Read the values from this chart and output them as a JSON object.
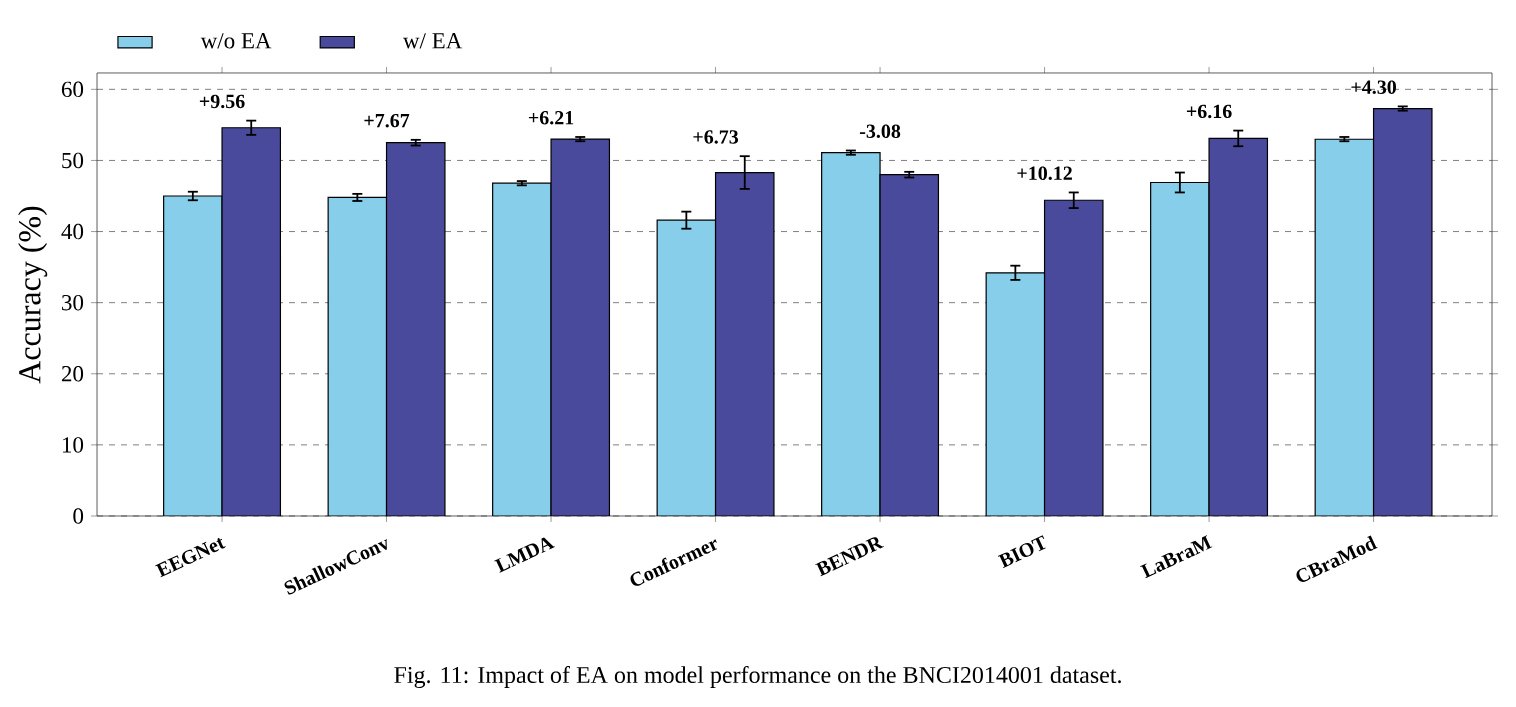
{
  "chart_data": {
    "type": "bar",
    "ylabel": "Accuracy (%)",
    "categories": [
      "EEGNet",
      "ShallowConv",
      "LMDA",
      "Conformer",
      "BENDR",
      "BIOT",
      "LaBraM",
      "CBraMod"
    ],
    "series": [
      {
        "name": "w/o EA",
        "color": "#87ceeb",
        "values": [
          45.0,
          44.8,
          46.8,
          41.6,
          51.1,
          34.2,
          46.9,
          53.0
        ],
        "errors": [
          0.6,
          0.5,
          0.3,
          1.2,
          0.3,
          1.0,
          1.4,
          0.3
        ]
      },
      {
        "name": "w/ EA",
        "color": "#4a4a9c",
        "values": [
          54.6,
          52.5,
          53.0,
          48.3,
          48.0,
          44.4,
          53.1,
          57.3
        ],
        "errors": [
          1.0,
          0.4,
          0.3,
          2.3,
          0.4,
          1.1,
          1.1,
          0.3
        ]
      }
    ],
    "ylim": [
      0,
      62.3
    ],
    "yticks": [
      0,
      10,
      20,
      30,
      40,
      50,
      60
    ],
    "grid": "y",
    "legend": "top left",
    "annotations": [
      "+9.56",
      "+7.67",
      "+6.21",
      "+6.73",
      "-3.08",
      "+10.12",
      "+6.16",
      "+4.30",
      "Fig. 11: Impact of EA on model performance on the BNCI2014001 dataset."
    ]
  }
}
